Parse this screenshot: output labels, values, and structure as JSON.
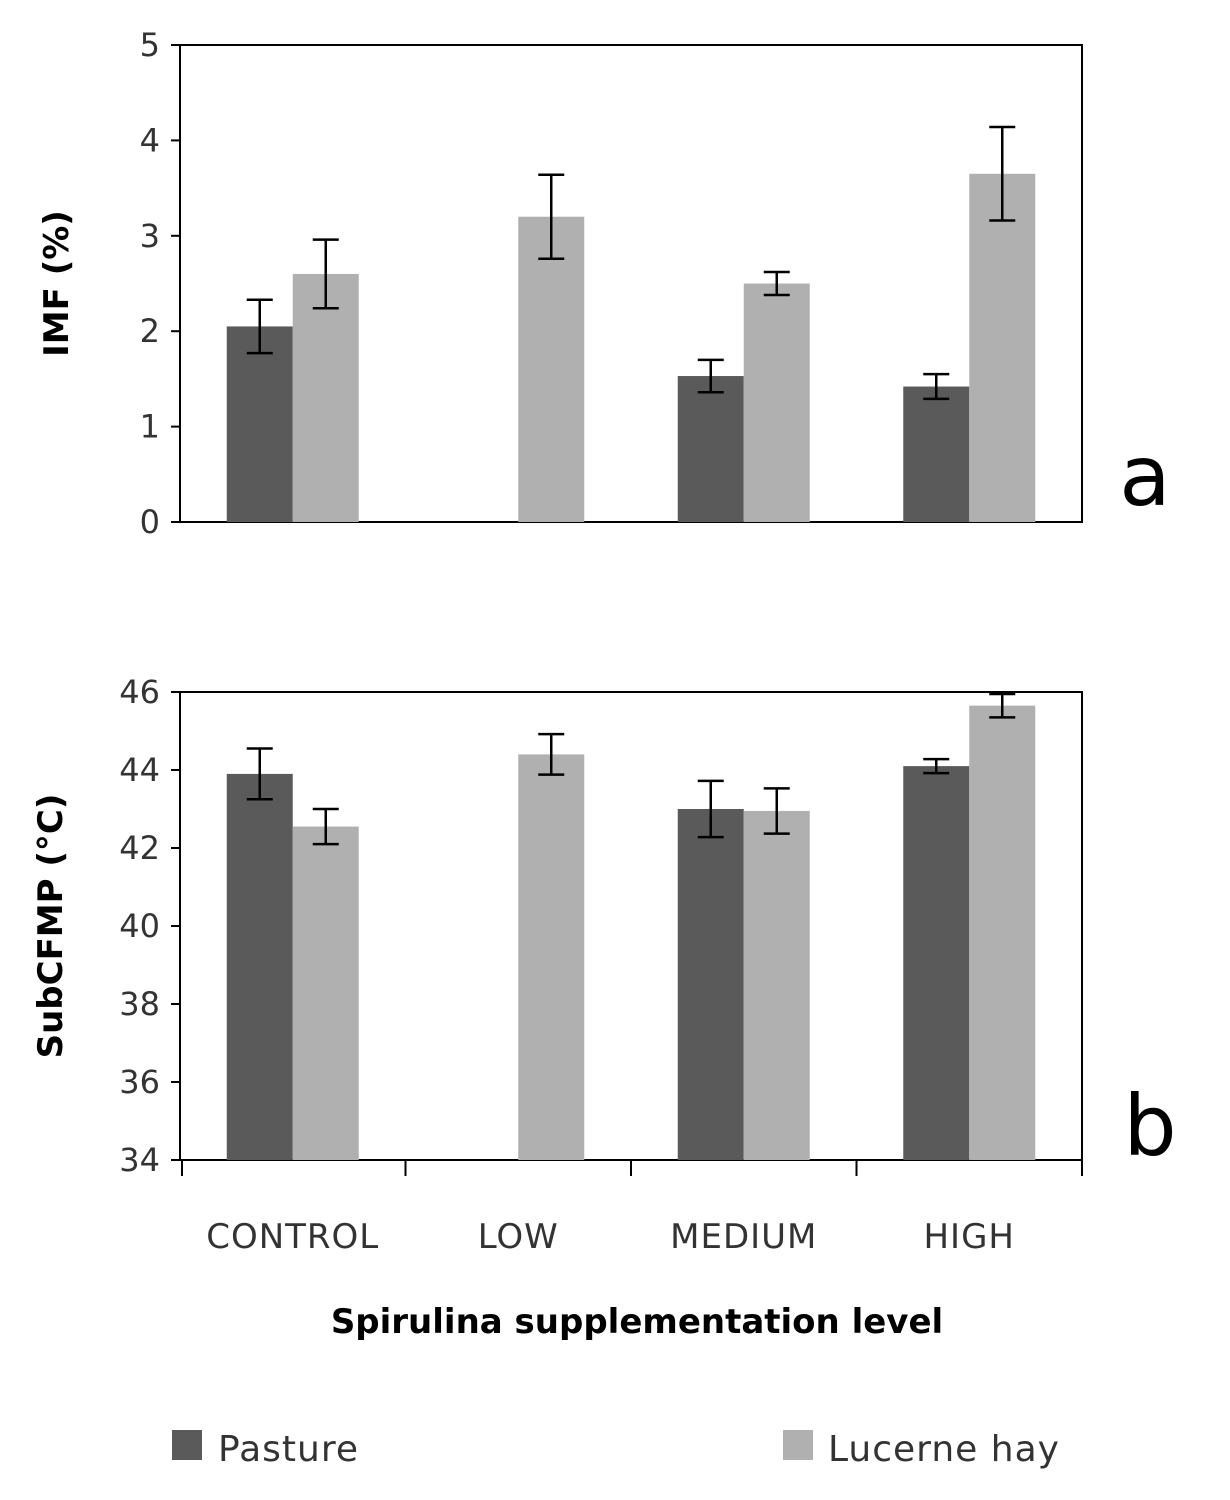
{
  "chart_data": [
    {
      "type": "bar",
      "panel_label": "a",
      "ylabel": "IMF (%)",
      "ylim": [
        0,
        5
      ],
      "yticks": [
        0,
        1,
        2,
        3,
        4,
        5
      ],
      "categories": [
        "CONTROL",
        "LOW",
        "MEDIUM",
        "HIGH"
      ],
      "series": [
        {
          "name": "Pasture",
          "color": "#5a5a5a",
          "values": [
            2.05,
            null,
            1.53,
            1.42
          ],
          "errors": [
            0.28,
            null,
            0.17,
            0.13
          ]
        },
        {
          "name": "Lucerne hay",
          "color": "#b0b0b0",
          "values": [
            2.6,
            3.2,
            2.5,
            3.65
          ],
          "errors": [
            0.36,
            0.44,
            0.12,
            0.49
          ]
        }
      ],
      "grid": false,
      "x_tick_labels_shown": false
    },
    {
      "type": "bar",
      "panel_label": "b",
      "ylabel": "SubCFMP (°C)",
      "ylim": [
        34,
        46
      ],
      "yticks": [
        34,
        36,
        38,
        40,
        42,
        44,
        46
      ],
      "categories": [
        "CONTROL",
        "LOW",
        "MEDIUM",
        "HIGH"
      ],
      "series": [
        {
          "name": "Pasture",
          "color": "#5a5a5a",
          "values": [
            43.9,
            null,
            43.0,
            44.1
          ],
          "errors": [
            0.65,
            null,
            0.72,
            0.18
          ]
        },
        {
          "name": "Lucerne hay",
          "color": "#b0b0b0",
          "values": [
            42.55,
            44.4,
            42.95,
            45.65
          ],
          "errors": [
            0.45,
            0.52,
            0.58,
            0.3
          ]
        }
      ],
      "grid": false,
      "xlabel": "Spirulina supplementation level"
    }
  ],
  "legend": {
    "placement": "bottom",
    "items": [
      {
        "label": "Pasture",
        "color": "#5a5a5a"
      },
      {
        "label": "Lucerne hay",
        "color": "#b0b0b0"
      }
    ]
  }
}
